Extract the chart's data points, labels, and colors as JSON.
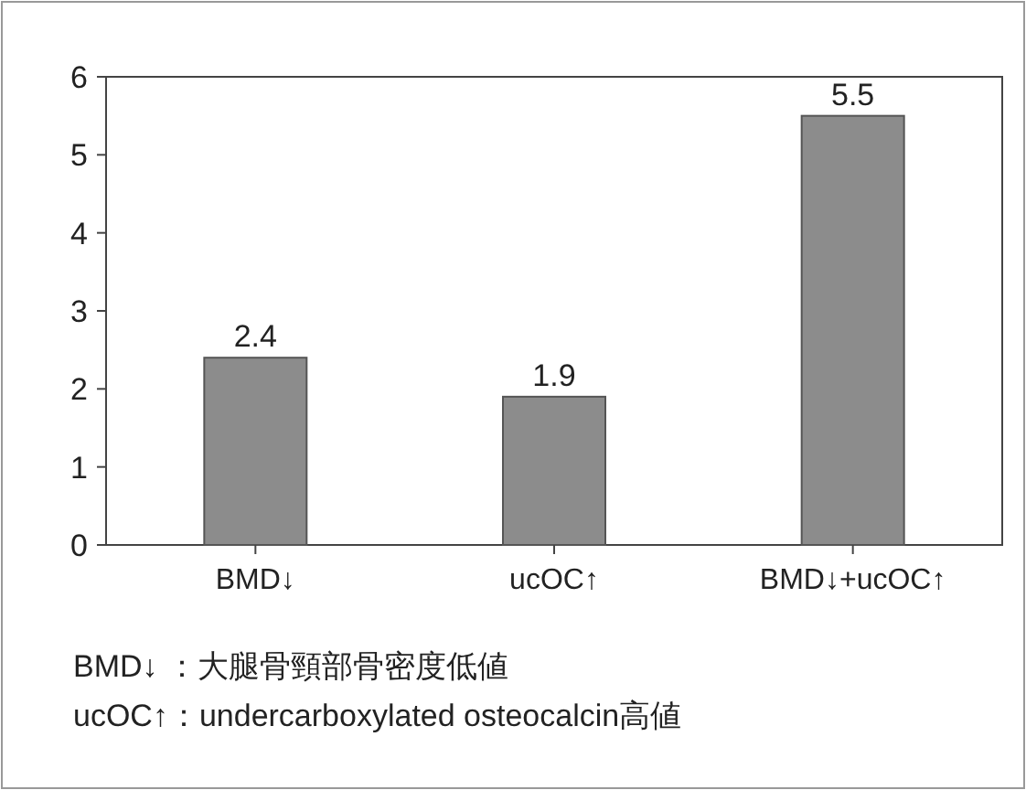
{
  "chart_data": {
    "type": "bar",
    "categories": [
      "BMD↓",
      "ucOC↑",
      "BMD↓+ucOC↑"
    ],
    "values": [
      2.4,
      1.9,
      5.5
    ],
    "color": "#8c8c8c",
    "ylim": [
      0,
      6
    ],
    "yticks": [
      0,
      1,
      2,
      3,
      4,
      5,
      6
    ],
    "data_labels": true,
    "annotations": [
      "BMD↓ ：大腿骨頸部骨密度低値",
      "ucOC↑：undercarboxylated osteocalcin高値"
    ]
  }
}
